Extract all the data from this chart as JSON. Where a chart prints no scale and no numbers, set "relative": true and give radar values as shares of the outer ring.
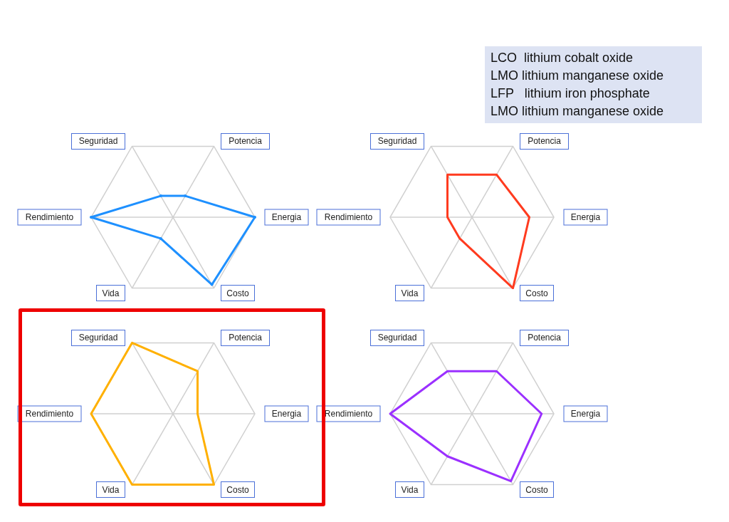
{
  "chart_data": [
    {
      "type": "other",
      "annotations": [
        "LCO  lithium cobalt oxide",
        "LMO lithium manganese oxide",
        "LFP   lithium iron phosphate",
        "LMO lithium manganese oxide"
      ]
    },
    {
      "type": "radar",
      "categories": [
        "Seguridad",
        "Potencia",
        "Energia",
        "Costo",
        "Vida",
        "Rendimiento"
      ],
      "relative": true,
      "grid": true,
      "marker": "circle",
      "series": [
        {
          "color": "#1e90ff",
          "values": [
            0.3,
            0.3,
            1,
            0.95,
            0.3,
            1
          ]
        }
      ]
    },
    {
      "type": "radar",
      "categories": [
        "Seguridad",
        "Potencia",
        "Energia",
        "Costo",
        "Vida",
        "Rendimiento"
      ],
      "relative": true,
      "grid": true,
      "marker": "none",
      "series": [
        {
          "color": "#ff3b1f",
          "values": [
            0.6,
            0.6,
            0.7,
            1,
            0.3,
            0.3
          ]
        }
      ]
    },
    {
      "type": "radar",
      "categories": [
        "Seguridad",
        "Potencia",
        "Energia",
        "Costo",
        "Vida",
        "Rendimiento"
      ],
      "relative": true,
      "grid": true,
      "marker": "none",
      "series": [
        {
          "color": "#ffb000",
          "values": [
            1,
            0.6,
            0.3,
            1,
            1,
            1
          ]
        }
      ]
    },
    {
      "type": "radar",
      "categories": [
        "Seguridad",
        "Potencia",
        "Energia",
        "Costo",
        "Vida",
        "Rendimiento"
      ],
      "relative": true,
      "grid": true,
      "marker": "none",
      "series": [
        {
          "color": "#9b30ff",
          "values": [
            0.6,
            0.6,
            0.85,
            0.95,
            0.6,
            1
          ]
        }
      ]
    }
  ]
}
